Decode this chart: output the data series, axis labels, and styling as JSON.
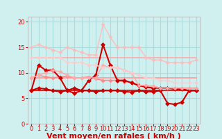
{
  "background_color": "#d0f0f0",
  "grid_color": "#aadddd",
  "xlabel": "Vent moyen/en rafales ( km/h )",
  "xlabel_color": "#cc0000",
  "xlabel_fontsize": 8,
  "tick_color": "#cc0000",
  "tick_fontsize": 6,
  "yticks": [
    0,
    5,
    10,
    15,
    20
  ],
  "xticks": [
    0,
    1,
    2,
    3,
    4,
    5,
    6,
    7,
    8,
    9,
    10,
    11,
    12,
    13,
    14,
    15,
    16,
    17,
    18,
    19,
    20,
    21,
    22,
    23
  ],
  "xlim": [
    -0.5,
    23.5
  ],
  "ylim": [
    0,
    21
  ],
  "series": [
    {
      "x": [
        0,
        1,
        2,
        3,
        4,
        5,
        6,
        7,
        8,
        9,
        10,
        11,
        12,
        13,
        14,
        15,
        16,
        17,
        18,
        19,
        20,
        21,
        22,
        23
      ],
      "y": [
        6.5,
        6.5,
        6.5,
        6.5,
        6.5,
        6.5,
        6.5,
        6.5,
        6.5,
        6.5,
        6.5,
        6.5,
        6.5,
        6.5,
        6.5,
        6.5,
        6.5,
        6.5,
        6.5,
        6.5,
        6.5,
        6.5,
        6.5,
        6.5
      ],
      "color": "#cc0000",
      "linewidth": 1.2,
      "marker": null,
      "alpha": 1.0
    },
    {
      "x": [
        0,
        1,
        2,
        3,
        4,
        5,
        6,
        7,
        8,
        9,
        10,
        11,
        12,
        13,
        14,
        15,
        16,
        17,
        18,
        19,
        20,
        21,
        22,
        23
      ],
      "y": [
        9.0,
        9.0,
        9.0,
        9.0,
        9.0,
        9.0,
        9.0,
        9.0,
        9.0,
        9.0,
        9.0,
        9.0,
        9.0,
        9.0,
        9.0,
        9.0,
        9.0,
        9.0,
        9.0,
        9.0,
        9.0,
        9.0,
        9.0,
        9.0
      ],
      "color": "#ff9999",
      "linewidth": 1.2,
      "marker": null,
      "alpha": 1.0
    },
    {
      "x": [
        0,
        1,
        2,
        3,
        4,
        5,
        6,
        7,
        8,
        9,
        10,
        11,
        12,
        13,
        14,
        15,
        16,
        17,
        18,
        19,
        20,
        21,
        22,
        23
      ],
      "y": [
        13.0,
        13.0,
        13.0,
        13.0,
        13.0,
        13.0,
        13.0,
        13.0,
        13.0,
        13.0,
        13.0,
        13.0,
        13.0,
        13.0,
        13.0,
        13.0,
        13.0,
        13.0,
        13.0,
        13.0,
        13.0,
        13.0,
        13.0,
        13.0
      ],
      "color": "#ffaaaa",
      "linewidth": 1.2,
      "marker": null,
      "alpha": 1.0
    },
    {
      "x": [
        0,
        1,
        2,
        3,
        4,
        5,
        6,
        7,
        8,
        9,
        10,
        11,
        12,
        13,
        14,
        15,
        16,
        17,
        18,
        19,
        20,
        21,
        22,
        23
      ],
      "y": [
        6.5,
        7.0,
        6.8,
        6.5,
        6.3,
        6.5,
        6.0,
        6.5,
        6.5,
        6.3,
        6.5,
        6.5,
        6.5,
        6.3,
        6.2,
        6.5,
        6.3,
        6.3,
        6.5,
        4.0,
        3.8,
        4.2,
        6.5,
        6.5
      ],
      "color": "#cc0000",
      "linewidth": 1.5,
      "marker": "D",
      "markersize": 3,
      "alpha": 1.0
    },
    {
      "x": [
        0,
        1,
        2,
        3,
        4,
        5,
        6,
        7,
        8,
        9,
        10,
        11,
        12,
        13,
        14,
        15,
        16,
        17,
        18,
        19,
        20,
        21,
        22,
        23
      ],
      "y": [
        9.0,
        9.5,
        9.2,
        9.0,
        9.2,
        9.3,
        9.0,
        9.0,
        9.2,
        8.8,
        8.5,
        8.5,
        8.5,
        8.2,
        8.2,
        7.5,
        7.5,
        7.3,
        7.0,
        7.0,
        7.0,
        7.0,
        7.0,
        7.0
      ],
      "color": "#ff8888",
      "linewidth": 1.2,
      "marker": "D",
      "markersize": 2.5,
      "alpha": 1.0
    },
    {
      "x": [
        0,
        1,
        2,
        3,
        4,
        5,
        6,
        7,
        8,
        9,
        10,
        11,
        12,
        13,
        14,
        15,
        16,
        17,
        18,
        19,
        20,
        21,
        22,
        23
      ],
      "y": [
        6.5,
        11.5,
        10.5,
        10.5,
        9.0,
        6.5,
        7.0,
        6.5,
        8.5,
        9.5,
        15.5,
        11.5,
        8.5,
        8.5,
        8.0,
        7.5,
        7.2,
        7.0,
        7.0,
        7.0,
        6.8,
        6.8,
        6.5,
        6.5
      ],
      "color": "#cc0000",
      "linewidth": 1.5,
      "marker": "D",
      "markersize": 3,
      "alpha": 1.0
    },
    {
      "x": [
        0,
        1,
        2,
        3,
        4,
        5,
        6,
        7,
        8,
        9,
        10,
        11,
        12,
        13,
        14,
        15,
        16,
        17,
        18,
        19,
        20,
        21,
        22,
        23
      ],
      "y": [
        9.0,
        9.5,
        10.0,
        10.5,
        10.2,
        9.5,
        9.0,
        9.0,
        9.0,
        9.0,
        11.5,
        11.0,
        11.0,
        10.5,
        10.0,
        7.5,
        7.5,
        7.3,
        7.0,
        7.0,
        7.0,
        7.0,
        7.0,
        7.0
      ],
      "color": "#ffaaaa",
      "linewidth": 1.2,
      "marker": "D",
      "markersize": 2.5,
      "alpha": 0.9
    },
    {
      "x": [
        0,
        1,
        2,
        3,
        4,
        5,
        6,
        7,
        8,
        9,
        10,
        11,
        12,
        13,
        14,
        15,
        16,
        17,
        18,
        19,
        20,
        21,
        22,
        23
      ],
      "y": [
        15.0,
        15.5,
        15.0,
        14.5,
        14.0,
        15.0,
        14.5,
        14.0,
        13.5,
        13.5,
        19.5,
        17.0,
        15.0,
        15.0,
        15.0,
        15.0,
        13.0,
        12.5,
        12.5,
        12.0,
        12.0,
        12.0,
        12.0,
        12.5
      ],
      "color": "#ffbbbb",
      "linewidth": 1.2,
      "marker": "D",
      "markersize": 2.5,
      "alpha": 0.8
    },
    {
      "x": [
        0,
        1,
        2,
        3,
        4,
        5,
        6,
        7,
        8,
        9,
        10,
        11,
        12,
        13,
        14,
        15,
        16,
        17,
        18,
        19,
        20,
        21,
        22,
        23
      ],
      "y": [
        13.0,
        13.0,
        13.0,
        13.0,
        13.0,
        12.0,
        12.0,
        12.0,
        11.5,
        11.5,
        11.0,
        11.0,
        11.0,
        10.5,
        10.0,
        9.5,
        9.0,
        9.0,
        8.5,
        8.5,
        8.0,
        8.0,
        8.0,
        8.0
      ],
      "color": "#ffcccc",
      "linewidth": 1.2,
      "marker": "D",
      "markersize": 2.5,
      "alpha": 0.8
    }
  ]
}
